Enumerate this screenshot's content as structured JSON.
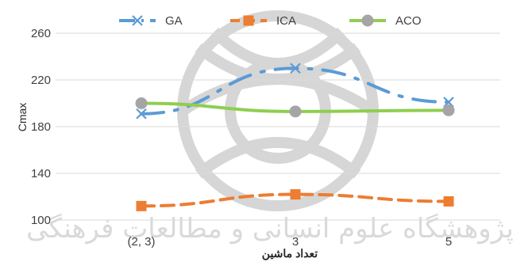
{
  "chart_data": {
    "type": "line",
    "categories": [
      "(2, 3)",
      "3",
      "5"
    ],
    "series": [
      {
        "name": "GA",
        "values": [
          191,
          230,
          201
        ],
        "color": "#5b9bd5",
        "marker": "x-mark",
        "dash": "long-dash-dot"
      },
      {
        "name": "ICA",
        "values": [
          112,
          122,
          116
        ],
        "color": "#ed7d31",
        "marker": "square",
        "dash": "dash"
      },
      {
        "name": "ACO",
        "values": [
          200,
          193,
          194
        ],
        "color": "#8fce4f",
        "marker": "circle",
        "dash": "solid",
        "marker_color": "#a5a5a5"
      }
    ],
    "title": "",
    "xlabel": "تعداد ماشین",
    "ylabel": "Cmax",
    "ylim": [
      100,
      260
    ],
    "yticks": [
      100,
      140,
      180,
      220,
      260
    ],
    "grid": true,
    "legend": "top"
  },
  "watermark": {
    "caption": "پژوهشگاه علوم انسانی و مطالعات فرهنگی"
  }
}
